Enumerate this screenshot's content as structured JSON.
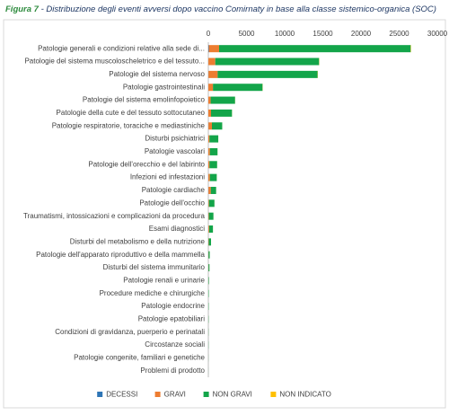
{
  "chart_data": {
    "type": "stacked_barh",
    "figure_label": "Figura 7",
    "title": "- Distribuzione degli eventi avversi dopo vaccino Comirnaty in base alla classe sistemico-organica (SOC)",
    "categories": [
      "Patologie generali e condizioni relative alla sede di...",
      "Patologie del sistema muscoloscheletrico e del tessuto...",
      "Patologie del sistema nervoso",
      "Patologie gastrointestinali",
      "Patologie del sistema emolinfopoietico",
      "Patologie della cute e del tessuto sottocutaneo",
      "Patologie respiratorie, toraciche e mediastiniche",
      "Disturbi psichiatrici",
      "Patologie vascolari",
      "Patologie dell'orecchio e del labirinto",
      "Infezioni ed infestazioni",
      "Patologie cardiache",
      "Patologie dell'occhio",
      "Traumatismi, intossicazioni e complicazioni da procedura",
      "Esami diagnostici",
      "Disturbi del metabolismo e della nutrizione",
      "Patologie dell'apparato riproduttivo e della mammella",
      "Disturbi del sistema immunitario",
      "Patologie renali e urinarie",
      "Procedure mediche e chirurgiche",
      "Patologie endocrine",
      "Patologie epatobiliari",
      "Condizioni di gravidanza, puerperio e perinatali",
      "Circostanze sociali",
      "Patologie congenite, familiari e genetiche",
      "Problemi di prodotto"
    ],
    "series": [
      {
        "name": "DECESSI",
        "color": "#2e75b6",
        "values": [
          60,
          10,
          20,
          5,
          2,
          2,
          20,
          2,
          5,
          0,
          5,
          20,
          0,
          5,
          2,
          2,
          0,
          0,
          2,
          0,
          0,
          0,
          0,
          0,
          0,
          0
        ]
      },
      {
        "name": "GRAVI",
        "color": "#ed7d31",
        "values": [
          1350,
          900,
          1200,
          600,
          300,
          350,
          450,
          150,
          200,
          150,
          200,
          300,
          80,
          60,
          100,
          50,
          30,
          30,
          20,
          10,
          10,
          10,
          5,
          2,
          2,
          0
        ]
      },
      {
        "name": "NON GRAVI",
        "color": "#13a54a",
        "values": [
          25100,
          13600,
          13100,
          6500,
          3200,
          2750,
          1350,
          1150,
          1000,
          1000,
          900,
          700,
          720,
          600,
          500,
          300,
          150,
          120,
          60,
          50,
          40,
          30,
          20,
          20,
          10,
          5
        ]
      },
      {
        "name": "NON INDICATO",
        "color": "#ffc000",
        "values": [
          50,
          30,
          30,
          20,
          10,
          10,
          5,
          5,
          5,
          5,
          5,
          5,
          5,
          5,
          5,
          2,
          2,
          2,
          0,
          0,
          0,
          0,
          0,
          0,
          0,
          0
        ]
      }
    ],
    "xlim": [
      0,
      30000
    ],
    "xticks": [
      0,
      5000,
      10000,
      15000,
      20000,
      25000,
      30000
    ],
    "grid": false,
    "legend": "bottom"
  }
}
